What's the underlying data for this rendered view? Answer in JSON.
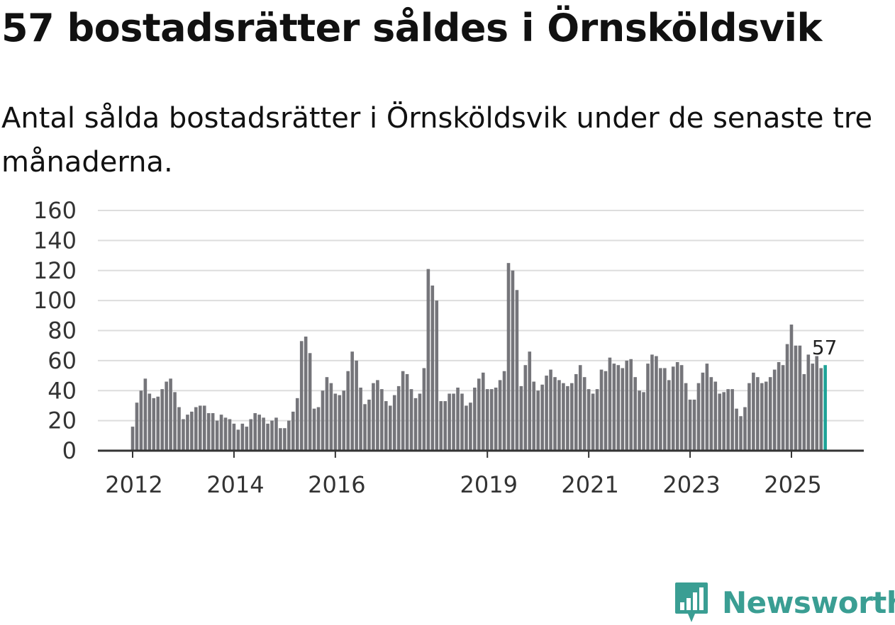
{
  "title": "57 bostadsrätter såldes i Örnsköldsvik",
  "subtitle": "Antal sålda bostadsrätter i Örnsköldsvik under de senaste tre månaderna.",
  "logo": {
    "text": "Newsworthy"
  },
  "colors": {
    "bar": "#75757a",
    "highlight": "#1ea397",
    "grid": "#dddddd",
    "axis": "#333333",
    "brand": "#3a9e93"
  },
  "chart_data": {
    "type": "bar",
    "title": "57 bostadsrätter såldes i Örnsköldsvik",
    "xlabel": "",
    "ylabel": "",
    "ylim": [
      0,
      160
    ],
    "yticks": [
      0,
      20,
      40,
      60,
      80,
      100,
      120,
      140,
      160
    ],
    "xticks": [
      {
        "label": "2012",
        "index": 0
      },
      {
        "label": "2014",
        "index": 24
      },
      {
        "label": "2016",
        "index": 48
      },
      {
        "label": "2019",
        "index": 84
      },
      {
        "label": "2021",
        "index": 108
      },
      {
        "label": "2023",
        "index": 132
      },
      {
        "label": "2025",
        "index": 156
      }
    ],
    "grid": true,
    "start": "2012-01",
    "frequency": "monthly",
    "values": [
      16,
      32,
      40,
      48,
      38,
      35,
      36,
      41,
      46,
      48,
      39,
      29,
      21,
      24,
      26,
      29,
      30,
      30,
      25,
      25,
      20,
      24,
      22,
      21,
      18,
      14,
      18,
      16,
      21,
      25,
      24,
      22,
      18,
      20,
      22,
      15,
      15,
      20,
      26,
      35,
      73,
      76,
      65,
      28,
      29,
      40,
      49,
      45,
      38,
      37,
      40,
      53,
      66,
      60,
      42,
      31,
      34,
      45,
      47,
      41,
      33,
      30,
      37,
      43,
      53,
      51,
      41,
      35,
      38,
      55,
      121,
      110,
      100,
      33,
      33,
      38,
      38,
      42,
      38,
      30,
      32,
      42,
      48,
      52,
      41,
      41,
      42,
      47,
      53,
      125,
      120,
      107,
      43,
      57,
      66,
      46,
      40,
      44,
      50,
      54,
      49,
      47,
      45,
      43,
      45,
      51,
      57,
      49,
      41,
      38,
      41,
      54,
      53,
      62,
      58,
      57,
      55,
      60,
      61,
      49,
      40,
      39,
      58,
      64,
      63,
      55,
      55,
      47,
      56,
      59,
      57,
      45,
      34,
      34,
      45,
      52,
      58,
      49,
      46,
      38,
      39,
      41,
      41,
      28,
      23,
      29,
      45,
      52,
      49,
      45,
      46,
      49,
      54,
      59,
      57,
      71,
      84,
      70,
      70,
      51,
      64,
      58,
      63,
      55,
      57
    ],
    "highlight_last": true,
    "annotation": {
      "text": "57",
      "target": "last"
    }
  }
}
